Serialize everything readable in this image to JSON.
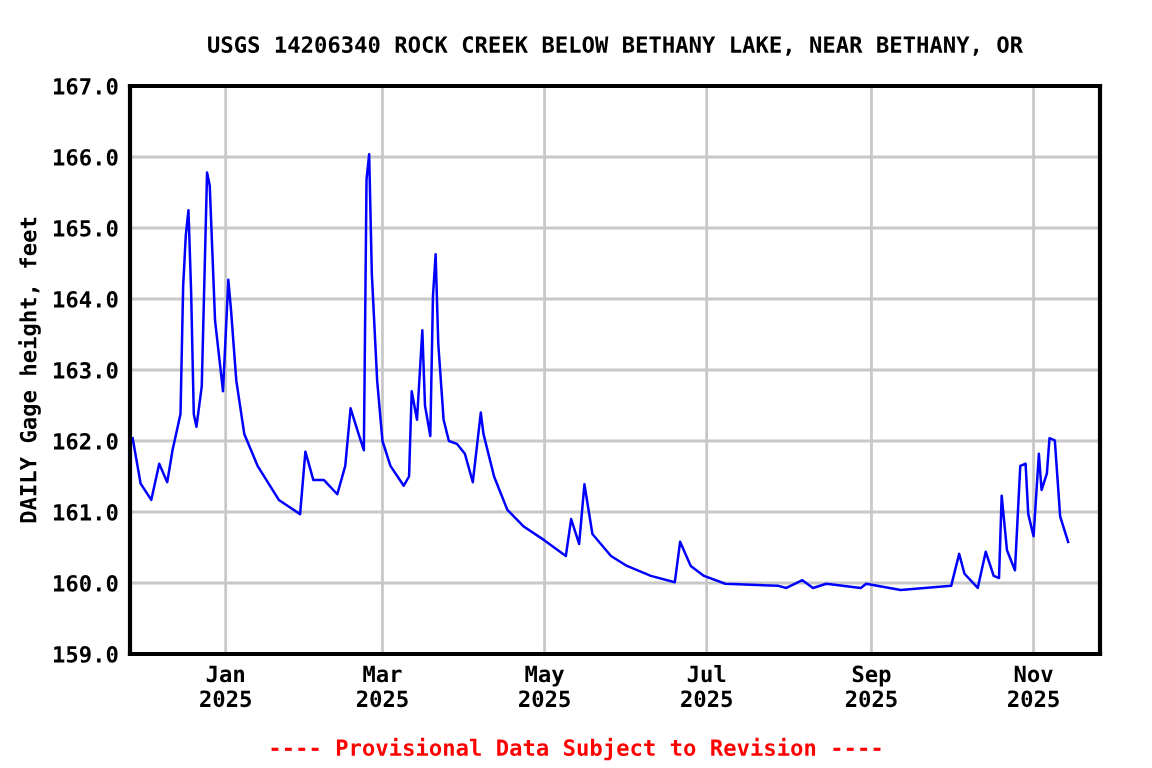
{
  "chart_data": {
    "type": "line",
    "title": "USGS 14206340 ROCK CREEK BELOW BETHANY LAKE, NEAR BETHANY, OR",
    "ylabel": "DAILY Gage height, feet",
    "annotations": [
      "---- Provisional Data Subject to Revision ----"
    ],
    "xlim": [
      "2024-11-26",
      "2025-11-26"
    ],
    "xticks": [
      {
        "value": "2025-01-01",
        "label": "Jan\n2025"
      },
      {
        "value": "2025-03-01",
        "label": "Mar\n2025"
      },
      {
        "value": "2025-05-01",
        "label": "May\n2025"
      },
      {
        "value": "2025-07-01",
        "label": "Jul\n2025"
      },
      {
        "value": "2025-09-01",
        "label": "Sep\n2025"
      },
      {
        "value": "2025-11-01",
        "label": "Nov\n2025"
      }
    ],
    "ylim": [
      159,
      167
    ],
    "yticks": [
      {
        "value": 159,
        "label": "159.0"
      },
      {
        "value": 160,
        "label": "160.0"
      },
      {
        "value": 161,
        "label": "161.0"
      },
      {
        "value": 162,
        "label": "162.0"
      },
      {
        "value": 163,
        "label": "163.0"
      },
      {
        "value": 164,
        "label": "164.0"
      },
      {
        "value": 165,
        "label": "165.0"
      },
      {
        "value": 166,
        "label": "166.0"
      },
      {
        "value": 167,
        "label": "167.0"
      }
    ],
    "grid": true,
    "legend": false,
    "marker": "none",
    "line_style": "solid",
    "series": [
      {
        "color": "#0000ff",
        "x": [
          "2024-11-27",
          "2024-11-30",
          "2024-12-04",
          "2024-12-07",
          "2024-12-10",
          "2024-12-12",
          "2024-12-15",
          "2024-12-16",
          "2024-12-17",
          "2024-12-18",
          "2024-12-19",
          "2024-12-20",
          "2024-12-21",
          "2024-12-23",
          "2024-12-25",
          "2024-12-26",
          "2024-12-28",
          "2024-12-31",
          "2025-01-02",
          "2025-01-03",
          "2025-01-05",
          "2025-01-08",
          "2025-01-13",
          "2025-01-21",
          "2025-01-29",
          "2025-01-31",
          "2025-02-03",
          "2025-02-07",
          "2025-02-12",
          "2025-02-15",
          "2025-02-17",
          "2025-02-20",
          "2025-02-22",
          "2025-02-23",
          "2025-02-24",
          "2025-02-25",
          "2025-02-27",
          "2025-03-01",
          "2025-03-04",
          "2025-03-09",
          "2025-03-11",
          "2025-03-12",
          "2025-03-14",
          "2025-03-16",
          "2025-03-17",
          "2025-03-19",
          "2025-03-20",
          "2025-03-21",
          "2025-03-22",
          "2025-03-24",
          "2025-03-26",
          "2025-03-29",
          "2025-04-01",
          "2025-04-04",
          "2025-04-07",
          "2025-04-08",
          "2025-04-12",
          "2025-04-17",
          "2025-04-23",
          "2025-05-01",
          "2025-05-09",
          "2025-05-11",
          "2025-05-14",
          "2025-05-16",
          "2025-05-19",
          "2025-05-26",
          "2025-06-01",
          "2025-06-10",
          "2025-06-19",
          "2025-06-21",
          "2025-06-25",
          "2025-06-30",
          "2025-07-08",
          "2025-07-28",
          "2025-07-31",
          "2025-08-06",
          "2025-08-10",
          "2025-08-15",
          "2025-08-28",
          "2025-08-30",
          "2025-09-12",
          "2025-10-01",
          "2025-10-04",
          "2025-10-06",
          "2025-10-11",
          "2025-10-14",
          "2025-10-17",
          "2025-10-19",
          "2025-10-20",
          "2025-10-22",
          "2025-10-25",
          "2025-10-27",
          "2025-10-29",
          "2025-10-30",
          "2025-11-01",
          "2025-11-03",
          "2025-11-04",
          "2025-11-06",
          "2025-11-07",
          "2025-11-09",
          "2025-11-11",
          "2025-11-14"
        ],
        "values": [
          162.04,
          161.4,
          161.17,
          161.68,
          161.42,
          161.87,
          162.38,
          164.18,
          164.9,
          165.25,
          164.1,
          162.38,
          162.2,
          162.77,
          165.78,
          165.6,
          163.7,
          162.7,
          164.27,
          163.85,
          162.85,
          162.1,
          161.65,
          161.17,
          160.97,
          161.85,
          161.45,
          161.45,
          161.25,
          161.65,
          162.46,
          162.1,
          161.87,
          165.68,
          166.04,
          164.35,
          162.85,
          162.0,
          161.65,
          161.37,
          161.5,
          162.7,
          162.3,
          163.56,
          162.5,
          162.07,
          164.04,
          164.63,
          163.37,
          162.3,
          162.0,
          161.96,
          161.82,
          161.42,
          162.4,
          162.1,
          161.5,
          161.03,
          160.8,
          160.6,
          160.38,
          160.9,
          160.55,
          161.39,
          160.69,
          160.38,
          160.24,
          160.1,
          160.01,
          160.58,
          160.24,
          160.1,
          159.99,
          159.96,
          159.93,
          160.04,
          159.93,
          159.99,
          159.93,
          159.99,
          159.9,
          159.96,
          160.41,
          160.13,
          159.93,
          160.44,
          160.1,
          160.07,
          161.23,
          160.46,
          160.18,
          161.65,
          161.68,
          160.97,
          160.66,
          161.82,
          161.31,
          161.54,
          162.04,
          162.01,
          160.94,
          160.58
        ]
      }
    ]
  }
}
